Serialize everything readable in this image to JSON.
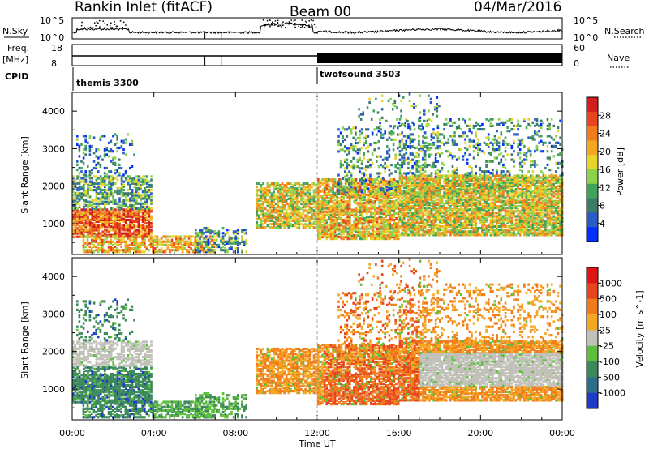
{
  "header": {
    "station": "Rankin Inlet (fitACF)",
    "beam": "Beam 00",
    "date": "04/Mar/2016"
  },
  "panels": {
    "nsky": {
      "label": "N.Sky",
      "right_label": "N.Search",
      "left_ticks": [
        "10^5",
        "10^0"
      ],
      "right_ticks": [
        "10^5",
        "10^0"
      ]
    },
    "freq": {
      "label_line1": "Freq.",
      "label_line2": "[MHz]",
      "right_label": "Nave",
      "left_ticks": [
        "18",
        "8"
      ],
      "right_ticks": [
        "60",
        "0"
      ]
    },
    "cpid": {
      "label": "CPID",
      "programs": [
        {
          "name": "themis 3300",
          "start_hour": 0
        },
        {
          "name": "twofsound 3503",
          "start_hour": 12
        }
      ]
    }
  },
  "chart_data": [
    {
      "type": "heatmap",
      "name": "power",
      "ylabel": "Slant Range [km]",
      "colorbar_label": "Power [dB]",
      "y_ticks": [
        1000,
        2000,
        3000,
        4000
      ],
      "colorbar_ticks": [
        "28",
        "24",
        "20",
        "16",
        "12",
        "8",
        "4"
      ],
      "colors": [
        "#0030ff",
        "#2a5cc8",
        "#3c7a6a",
        "#3fa35a",
        "#8cd24a",
        "#e8d52a",
        "#f5a623",
        "#f07c1c",
        "#e8451e",
        "#d41e1e"
      ]
    },
    {
      "type": "heatmap",
      "name": "velocity",
      "ylabel": "Slant Range [km]",
      "colorbar_label": "Velocity [m s^-1]",
      "y_ticks": [
        1000,
        2000,
        3000,
        4000
      ],
      "colorbar_ticks": [
        "1000",
        "500",
        "100",
        "25",
        "-25",
        "-100",
        "-500",
        "-1000"
      ],
      "colors": [
        "#1e3cc8",
        "#2d6e8a",
        "#3c8a5a",
        "#5cbf3a",
        "#c0c0b8",
        "#f5a623",
        "#f07c1c",
        "#e8451e",
        "#e01414"
      ]
    }
  ],
  "axes": {
    "xlabel": "Time UT",
    "x_ticks": [
      "00:00",
      "04:00",
      "08:00",
      "12:00",
      "16:00",
      "20:00",
      "00:00"
    ],
    "x_range_hours": [
      0,
      24
    ],
    "y_range_km": [
      180,
      4500
    ]
  }
}
